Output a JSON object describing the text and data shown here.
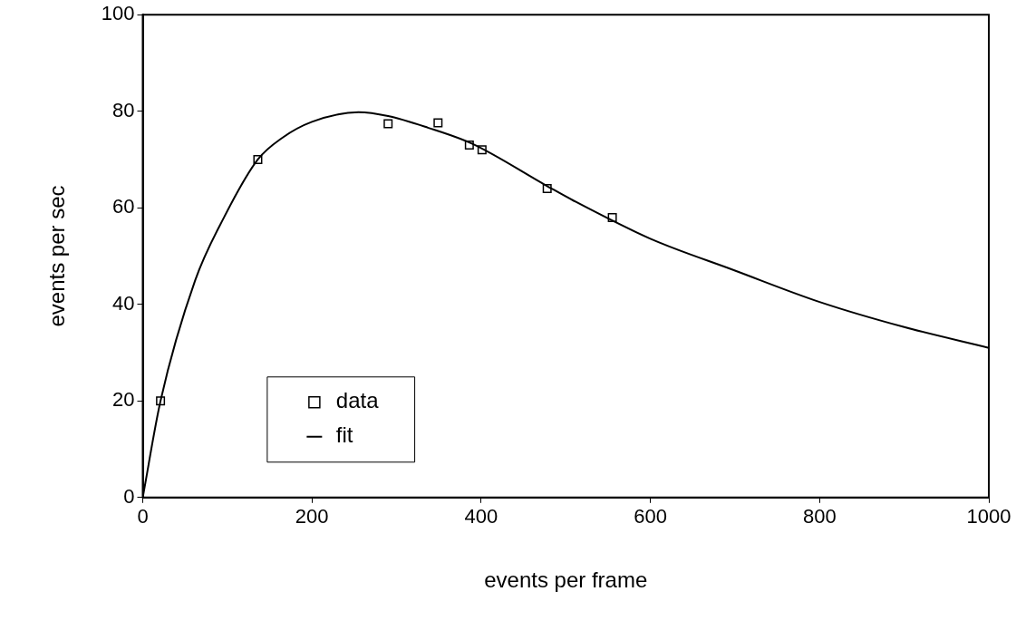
{
  "chart_data": {
    "type": "scatter",
    "xlabel": "events per frame",
    "ylabel": "events per sec",
    "xlim": [
      0,
      1000
    ],
    "ylim": [
      0,
      100
    ],
    "xticks": [
      0,
      200,
      400,
      600,
      800,
      1000
    ],
    "yticks": [
      0,
      20,
      40,
      60,
      80,
      100
    ],
    "grid": false,
    "legend": "bottom left",
    "marker": "square",
    "series": [
      {
        "name": "data",
        "color": "#000000",
        "x": [
          21,
          136,
          290,
          349,
          386,
          401,
          478,
          555
        ],
        "values": [
          20,
          70,
          77.4,
          77.6,
          73,
          72,
          64,
          58
        ]
      },
      {
        "name": "fit",
        "type": "line",
        "color": "#000000",
        "marker": "none",
        "line_style": "solid",
        "x": [
          0,
          21,
          62,
          96,
          136,
          165,
          200,
          255,
          290,
          337,
          389,
          478,
          509,
          600,
          700,
          800,
          900,
          1000
        ],
        "values": [
          0,
          20,
          45,
          58,
          70,
          74.5,
          77.8,
          79.8,
          79,
          76.6,
          73.3,
          64.5,
          61.5,
          53.6,
          47,
          40.5,
          35.3,
          31
        ]
      }
    ]
  }
}
